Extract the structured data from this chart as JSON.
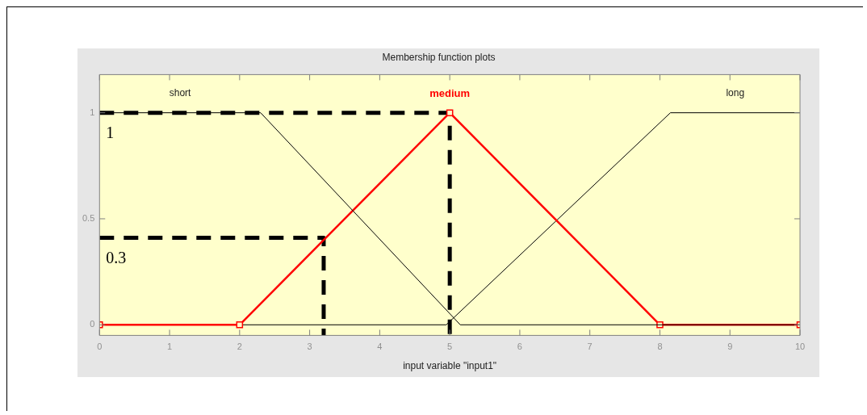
{
  "chart_data": {
    "type": "line",
    "title": "Membership function plots",
    "xlabel": "input variable \"input1\"",
    "xlim": [
      0,
      10
    ],
    "ylim": [
      -0.05,
      1.18
    ],
    "xticks": [
      0,
      1,
      2,
      3,
      4,
      5,
      6,
      7,
      8,
      9,
      10
    ],
    "yticks": [
      0,
      0.5,
      1
    ],
    "grid": false,
    "legend": false,
    "series": [
      {
        "name": "short",
        "color": "#000000",
        "x": [
          0,
          2.3,
          5.15,
          10
        ],
        "values": [
          1,
          1,
          0,
          0
        ]
      },
      {
        "name": "medium",
        "color": "#ff0000",
        "x": [
          0,
          2,
          5,
          8,
          10
        ],
        "values": [
          0,
          0,
          1,
          0,
          0
        ],
        "marker": "square"
      },
      {
        "name": "long",
        "color": "#000000",
        "x": [
          0,
          4.95,
          8.15,
          10
        ],
        "values": [
          0,
          0,
          1,
          1
        ]
      },
      {
        "color": "#000000",
        "x": [
          0,
          5,
          5
        ],
        "values": [
          1,
          1,
          -0.05
        ],
        "line_style": "dashed"
      },
      {
        "color": "#000000",
        "x": [
          0,
          3.2,
          3.2
        ],
        "values": [
          0.41,
          0.41,
          -0.05
        ],
        "line_style": "dashed"
      }
    ],
    "annotations": [
      {
        "text": "1",
        "x": 0,
        "y": 1
      },
      {
        "text": "0.3",
        "x": 0,
        "y": 0.41
      }
    ]
  }
}
